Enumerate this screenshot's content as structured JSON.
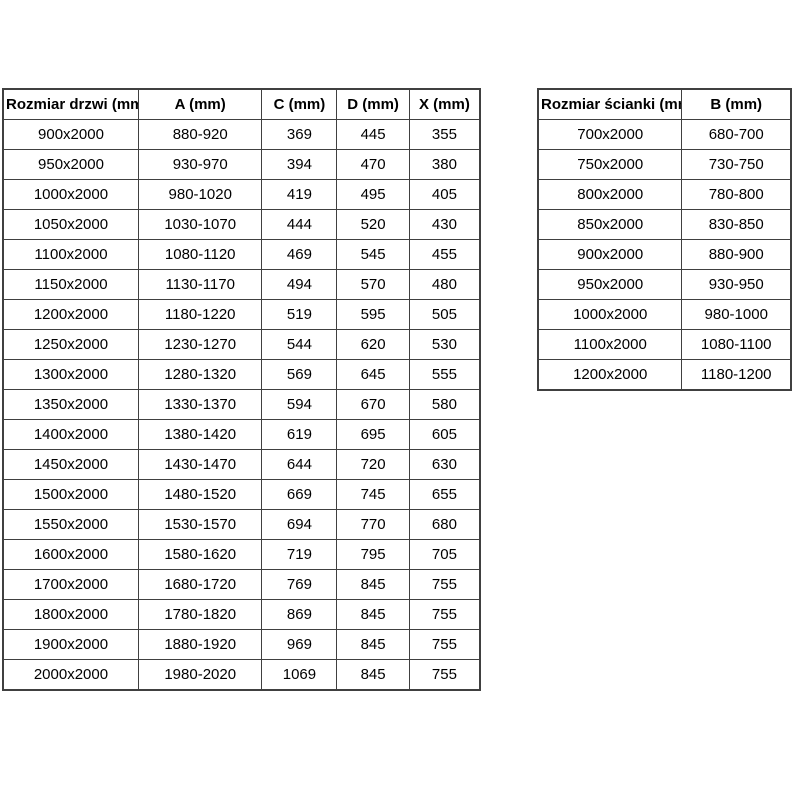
{
  "doors_table": {
    "name": "door-sizes",
    "headers": [
      "Rozmiar drzwi (mm)",
      "A (mm)",
      "C (mm)",
      "D (mm)",
      "X (mm)"
    ],
    "rows": [
      [
        "900x2000",
        "880-920",
        "369",
        "445",
        "355"
      ],
      [
        "950x2000",
        "930-970",
        "394",
        "470",
        "380"
      ],
      [
        "1000x2000",
        "980-1020",
        "419",
        "495",
        "405"
      ],
      [
        "1050x2000",
        "1030-1070",
        "444",
        "520",
        "430"
      ],
      [
        "1100x2000",
        "1080-1120",
        "469",
        "545",
        "455"
      ],
      [
        "1150x2000",
        "1130-1170",
        "494",
        "570",
        "480"
      ],
      [
        "1200x2000",
        "1180-1220",
        "519",
        "595",
        "505"
      ],
      [
        "1250x2000",
        "1230-1270",
        "544",
        "620",
        "530"
      ],
      [
        "1300x2000",
        "1280-1320",
        "569",
        "645",
        "555"
      ],
      [
        "1350x2000",
        "1330-1370",
        "594",
        "670",
        "580"
      ],
      [
        "1400x2000",
        "1380-1420",
        "619",
        "695",
        "605"
      ],
      [
        "1450x2000",
        "1430-1470",
        "644",
        "720",
        "630"
      ],
      [
        "1500x2000",
        "1480-1520",
        "669",
        "745",
        "655"
      ],
      [
        "1550x2000",
        "1530-1570",
        "694",
        "770",
        "680"
      ],
      [
        "1600x2000",
        "1580-1620",
        "719",
        "795",
        "705"
      ],
      [
        "1700x2000",
        "1680-1720",
        "769",
        "845",
        "755"
      ],
      [
        "1800x2000",
        "1780-1820",
        "869",
        "845",
        "755"
      ],
      [
        "1900x2000",
        "1880-1920",
        "969",
        "845",
        "755"
      ],
      [
        "2000x2000",
        "1980-2020",
        "1069",
        "845",
        "755"
      ]
    ]
  },
  "walls_table": {
    "name": "wall-panel-sizes",
    "headers": [
      "Rozmiar ścianki (mm)",
      "B (mm)"
    ],
    "rows": [
      [
        "700x2000",
        "680-700"
      ],
      [
        "750x2000",
        "730-750"
      ],
      [
        "800x2000",
        "780-800"
      ],
      [
        "850x2000",
        "830-850"
      ],
      [
        "900x2000",
        "880-900"
      ],
      [
        "950x2000",
        "930-950"
      ],
      [
        "1000x2000",
        "980-1000"
      ],
      [
        "1100x2000",
        "1080-1100"
      ],
      [
        "1200x2000",
        "1180-1200"
      ]
    ]
  },
  "colors": {
    "border": "#404040",
    "text": "#000000",
    "background": "#ffffff"
  }
}
